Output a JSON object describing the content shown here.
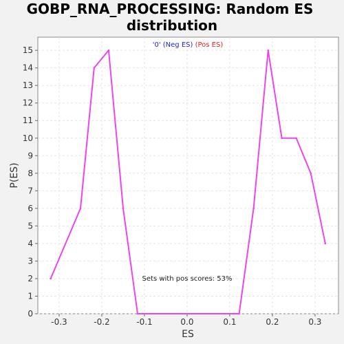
{
  "chart_data": {
    "type": "line",
    "title_lines": [
      "GOBP_RNA_PROCESSING: Random ES",
      "distribution"
    ],
    "xlabel": "ES",
    "ylabel": "P(ES)",
    "xlim": [
      -0.35,
      0.355
    ],
    "ylim": [
      0,
      15.75
    ],
    "x_ticks": [
      -0.3,
      -0.2,
      -0.1,
      0.0,
      0.1,
      0.2,
      0.3
    ],
    "x_tick_labels": [
      "-0.3",
      "-0.2",
      "-0.1",
      "0.0",
      "0.1",
      "0.2",
      "0.3"
    ],
    "y_ticks": [
      0,
      1,
      2,
      3,
      4,
      5,
      6,
      7,
      8,
      9,
      10,
      11,
      12,
      13,
      14,
      15
    ],
    "y_tick_labels": [
      "0",
      "1",
      "2",
      "3",
      "4",
      "5",
      "6",
      "7",
      "8",
      "9",
      "10",
      "11",
      "12",
      "13",
      "14",
      "15"
    ],
    "grid": true,
    "legend": {
      "placement": "top-center",
      "entries": [
        {
          "text": "'0' (Neg ES)",
          "color": "#2222cc"
        },
        {
          "text": "(Pos ES)",
          "color": "#dd2222"
        }
      ]
    },
    "annotation": "Sets with pos scores: 53%",
    "series": [
      {
        "color": "#ee44ee",
        "x": [
          -0.32,
          -0.25,
          -0.218,
          -0.184,
          -0.15,
          -0.116,
          0.122,
          0.156,
          0.19,
          0.222,
          0.256,
          0.29,
          0.324
        ],
        "y": [
          2,
          6,
          14,
          15,
          6,
          0,
          0,
          6,
          15,
          10,
          10,
          8,
          4
        ]
      }
    ]
  }
}
